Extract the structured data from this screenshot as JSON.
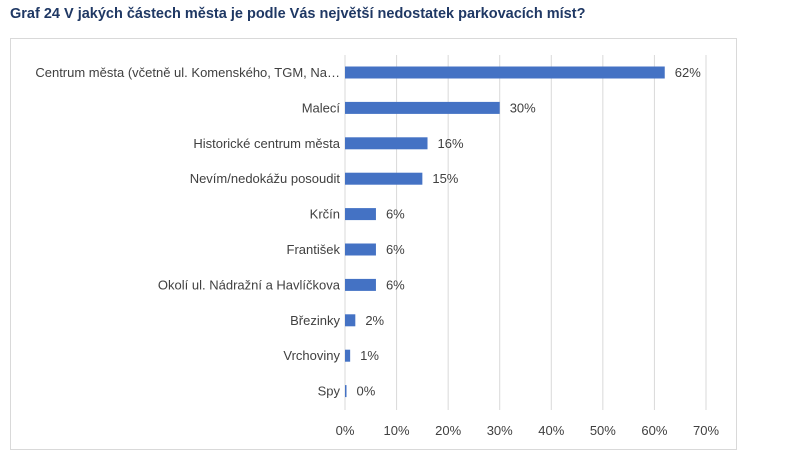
{
  "page_title": "Graf 24 V jakých částech města je podle Vás největší nedostatek parkovacích míst?",
  "chart_data": {
    "type": "bar",
    "orientation": "horizontal",
    "title": "",
    "xlabel": "",
    "ylabel": "",
    "categories": [
      "Centrum města (včetně ul. Komenského, TGM, Na…",
      "Malecí",
      "Historické centrum města",
      "Nevím/nedokážu posoudit",
      "Krčín",
      "František",
      "Okolí ul. Nádražní a Havlíčkova",
      "Březinky",
      "Vrchoviny",
      "Spy"
    ],
    "values": [
      62,
      30,
      16,
      15,
      6,
      6,
      6,
      2,
      1,
      0
    ],
    "value_labels": [
      "62%",
      "30%",
      "16%",
      "15%",
      "6%",
      "6%",
      "6%",
      "2%",
      "1%",
      "0%"
    ],
    "xlim": [
      0,
      70
    ],
    "ticks": [
      "0%",
      "10%",
      "20%",
      "30%",
      "40%",
      "50%",
      "60%",
      "70%"
    ],
    "grid": true,
    "bar_color": "#4472c4"
  }
}
